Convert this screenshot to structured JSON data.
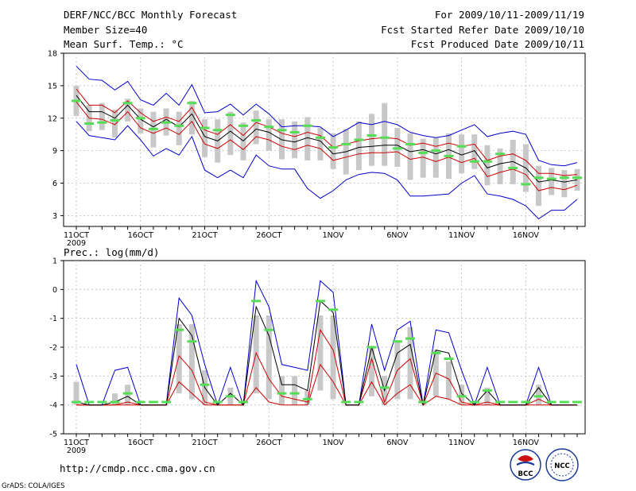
{
  "header": {
    "title": "DERF/NCC/BCC Monthly Forecast",
    "member_size": "Member Size=40",
    "variable": "Mean Surf. Temp.: °C",
    "period": "For 2009/10/11-2009/11/19",
    "started": "Fcst Started Refer Date 2009/10/10",
    "produced": "Fcst Produced Date 2009/10/11"
  },
  "footer": {
    "url": "http://cmdp.ncc.cma.gov.cn",
    "grads": "GrADS: COLA/IGES",
    "logo_left": "BCC",
    "logo_right": "NCC"
  },
  "colors": {
    "ensemble_range": "#0000cc",
    "spread": "#cc0000",
    "mean": "#000000",
    "box": "#c8c8c8",
    "marker": "#55dd55"
  },
  "chart_data": [
    {
      "type": "line",
      "title": "Mean Surf. Temp.: °C",
      "x_dates": [
        "10/11",
        "10/12",
        "10/13",
        "10/14",
        "10/15",
        "10/16",
        "10/17",
        "10/18",
        "10/19",
        "10/20",
        "10/21",
        "10/22",
        "10/23",
        "10/24",
        "10/25",
        "10/26",
        "10/27",
        "10/28",
        "10/29",
        "10/30",
        "10/31",
        "11/01",
        "11/02",
        "11/03",
        "11/04",
        "11/05",
        "11/06",
        "11/07",
        "11/08",
        "11/09",
        "11/10",
        "11/11",
        "11/12",
        "11/13",
        "11/14",
        "11/15",
        "11/16",
        "11/17",
        "11/18",
        "11/19"
      ],
      "xtick_labels": [
        "11OCT\n2009",
        "16OCT",
        "21OCT",
        "26OCT",
        "1NOV",
        "6NOV",
        "11NOV",
        "16NOV"
      ],
      "ylim": [
        2,
        18
      ],
      "yticks": [
        3,
        6,
        9,
        12,
        15,
        18
      ],
      "series": [
        {
          "name": "max",
          "values": [
            16.8,
            15.6,
            15.5,
            14.6,
            15.4,
            13.7,
            13.2,
            14.3,
            13.2,
            15.1,
            12.5,
            12.6,
            13.3,
            12.3,
            13.3,
            12.4,
            11.2,
            11.3,
            11.3,
            11.2,
            10.3,
            10.9,
            11.6,
            11.4,
            11.7,
            11.4,
            10.7,
            10.4,
            10.2,
            10.4,
            10.9,
            11.4,
            10.3,
            10.6,
            10.8,
            10.5,
            8.1,
            7.7,
            7.6,
            7.9
          ]
        },
        {
          "name": "p_upper",
          "values": [
            14.7,
            13.2,
            13.2,
            12.5,
            13.6,
            12.5,
            11.7,
            12.1,
            11.7,
            13.0,
            10.9,
            10.5,
            11.4,
            10.4,
            11.6,
            11.2,
            10.6,
            10.3,
            10.7,
            10.4,
            9.3,
            9.6,
            9.9,
            10.1,
            10.2,
            10.1,
            9.5,
            9.7,
            9.4,
            9.7,
            9.4,
            9.6,
            8.1,
            8.5,
            8.7,
            8.1,
            6.9,
            6.9,
            6.7,
            6.8
          ]
        },
        {
          "name": "mean",
          "values": [
            14.1,
            12.6,
            12.6,
            12.0,
            13.2,
            11.9,
            11.2,
            11.9,
            11.2,
            12.4,
            10.3,
            9.9,
            10.8,
            9.9,
            11.0,
            10.7,
            10.0,
            9.8,
            10.2,
            9.9,
            8.7,
            8.9,
            9.3,
            9.4,
            9.5,
            9.5,
            8.9,
            9.1,
            8.7,
            9.1,
            8.6,
            9.0,
            7.4,
            7.8,
            8.0,
            7.4,
            6.1,
            6.3,
            6.1,
            6.3
          ]
        },
        {
          "name": "p_lower",
          "values": [
            13.5,
            12.0,
            11.9,
            11.4,
            12.6,
            11.1,
            10.6,
            11.1,
            10.5,
            11.7,
            9.6,
            9.2,
            10.0,
            9.1,
            10.3,
            10.0,
            9.4,
            9.1,
            9.5,
            9.2,
            8.1,
            8.4,
            8.7,
            8.8,
            8.8,
            8.9,
            8.2,
            8.4,
            8.0,
            8.4,
            7.9,
            8.3,
            6.6,
            7.0,
            7.3,
            6.8,
            5.3,
            5.6,
            5.4,
            5.8
          ]
        },
        {
          "name": "min",
          "values": [
            11.7,
            10.4,
            10.2,
            10.0,
            11.3,
            10.0,
            8.5,
            9.2,
            8.6,
            10.3,
            7.2,
            6.5,
            7.2,
            6.5,
            8.6,
            7.6,
            7.3,
            7.3,
            5.5,
            4.6,
            5.3,
            6.3,
            6.8,
            7.0,
            6.9,
            6.3,
            4.8,
            4.8,
            4.9,
            5.0,
            6.0,
            6.7,
            5.0,
            4.8,
            4.5,
            3.9,
            2.7,
            3.5,
            3.5,
            4.5
          ]
        },
        {
          "name": "marker",
          "values": [
            13.6,
            11.5,
            11.6,
            11.8,
            13.4,
            12.0,
            11.0,
            11.6,
            11.3,
            13.4,
            11.1,
            10.9,
            12.3,
            11.3,
            11.8,
            11.2,
            10.9,
            10.7,
            11.3,
            10.2,
            9.3,
            9.6,
            10.0,
            10.4,
            10.2,
            9.2,
            9.6,
            8.8,
            9.0,
            8.5,
            9.4,
            8.0,
            8.0,
            8.7,
            7.4,
            5.9,
            6.5,
            6.4,
            6.5,
            6.5
          ]
        },
        {
          "name": "box_top",
          "values": [
            15.0,
            13.2,
            13.4,
            12.8,
            13.8,
            12.9,
            12.6,
            12.9,
            12.6,
            13.6,
            11.9,
            11.9,
            12.6,
            11.6,
            12.7,
            11.9,
            11.9,
            11.7,
            12.1,
            11.1,
            10.6,
            11.0,
            11.7,
            12.4,
            13.4,
            11.1,
            10.6,
            10.1,
            10.2,
            10.6,
            10.5,
            10.5,
            9.5,
            9.2,
            10.0,
            9.6,
            7.6,
            7.4,
            7.2,
            7.3
          ]
        },
        {
          "name": "box_bottom",
          "values": [
            12.2,
            10.8,
            10.9,
            10.2,
            11.7,
            10.6,
            9.3,
            10.4,
            9.5,
            10.5,
            8.4,
            7.9,
            8.6,
            8.1,
            9.6,
            9.0,
            8.2,
            8.3,
            8.1,
            8.1,
            7.3,
            6.8,
            7.2,
            7.6,
            7.6,
            7.5,
            6.3,
            6.5,
            6.5,
            6.4,
            6.9,
            7.3,
            5.8,
            5.9,
            5.9,
            5.2,
            3.9,
            4.9,
            4.7,
            5.3
          ]
        }
      ]
    },
    {
      "type": "line",
      "title": "Prec.: log(mm/d)",
      "x_dates": [
        "10/11",
        "10/12",
        "10/13",
        "10/14",
        "10/15",
        "10/16",
        "10/17",
        "10/18",
        "10/19",
        "10/20",
        "10/21",
        "10/22",
        "10/23",
        "10/24",
        "10/25",
        "10/26",
        "10/27",
        "10/28",
        "10/29",
        "10/30",
        "10/31",
        "11/01",
        "11/02",
        "11/03",
        "11/04",
        "11/05",
        "11/06",
        "11/07",
        "11/08",
        "11/09",
        "11/10",
        "11/11",
        "11/12",
        "11/13",
        "11/14",
        "11/15",
        "11/16",
        "11/17",
        "11/18",
        "11/19"
      ],
      "xtick_labels": [
        "11OCT\n2009",
        "16OCT",
        "21OCT",
        "26OCT",
        "1NOV",
        "6NOV",
        "11NOV",
        "16NOV"
      ],
      "ylim": [
        -5,
        1
      ],
      "yticks": [
        -5,
        -4,
        -3,
        -2,
        -1,
        0,
        1
      ],
      "series": [
        {
          "name": "max",
          "values": [
            -2.6,
            -4,
            -4,
            -2.8,
            -2.7,
            -4,
            -4,
            -4,
            -0.3,
            -0.9,
            -2.6,
            -4,
            -2.7,
            -4,
            0.3,
            -0.6,
            -2.6,
            -2.7,
            -2.8,
            0.3,
            -0.1,
            -4,
            -4,
            -1.2,
            -2.8,
            -1.4,
            -1.1,
            -4,
            -1.4,
            -1.5,
            -2.8,
            -4,
            -2.7,
            -4,
            -4,
            -4,
            -2.7,
            -4,
            -4,
            -4
          ]
        },
        {
          "name": "mean",
          "values": [
            -3.9,
            -4,
            -4,
            -3.9,
            -3.7,
            -4,
            -4,
            -4,
            -1.0,
            -1.6,
            -3.4,
            -4,
            -3.6,
            -4,
            -0.6,
            -1.6,
            -3.3,
            -3.3,
            -3.5,
            -0.4,
            -0.8,
            -4,
            -4,
            -2.0,
            -3.5,
            -2.2,
            -1.9,
            -4,
            -2.1,
            -2.2,
            -3.6,
            -4,
            -3.5,
            -4,
            -4,
            -4,
            -3.4,
            -4,
            -4,
            -4
          ]
        },
        {
          "name": "spread",
          "values": [
            -4,
            -4,
            -4,
            -4,
            -3.9,
            -4,
            -4,
            -4,
            -2.3,
            -2.8,
            -3.9,
            -4,
            -4,
            -4,
            -2.2,
            -3.1,
            -3.7,
            -3.8,
            -3.9,
            -1.4,
            -2.1,
            -4,
            -4,
            -2.4,
            -3.9,
            -2.8,
            -2.4,
            -4,
            -2.9,
            -3.1,
            -3.9,
            -4,
            -3.9,
            -4,
            -4,
            -4,
            -3.8,
            -4,
            -4,
            -4
          ]
        },
        {
          "name": "low",
          "values": [
            -4,
            -4,
            -4,
            -4,
            -4,
            -4,
            -4,
            -4,
            -3.2,
            -3.6,
            -4,
            -4,
            -4,
            -4,
            -3.4,
            -3.9,
            -4,
            -4,
            -4,
            -2.6,
            -3.2,
            -4,
            -4,
            -3.2,
            -4,
            -3.6,
            -3.3,
            -4,
            -3.7,
            -3.8,
            -4,
            -4,
            -4,
            -4,
            -4,
            -4,
            -4,
            -4,
            -4,
            -4
          ]
        },
        {
          "name": "marker",
          "values": [
            -3.9,
            -3.9,
            -3.9,
            -3.9,
            -3.6,
            -3.9,
            -3.9,
            -3.9,
            -1.4,
            -1.8,
            -3.3,
            -3.9,
            -3.7,
            -3.9,
            -0.4,
            -1.4,
            -3.6,
            -3.6,
            -3.8,
            -0.4,
            -0.7,
            -3.9,
            -3.9,
            -2.0,
            -3.4,
            -1.8,
            -1.7,
            -3.9,
            -2.2,
            -2.4,
            -3.7,
            -3.9,
            -3.5,
            -3.9,
            -3.9,
            -3.9,
            -3.7,
            -3.9,
            -3.9,
            -3.9
          ]
        },
        {
          "name": "box_top",
          "values": [
            -3.2,
            -4,
            -4,
            -3.6,
            -3.3,
            -4,
            -4,
            -4,
            -1.2,
            -1.2,
            -2.8,
            -4,
            -3.4,
            -4,
            -0.9,
            -0.9,
            -3.0,
            -3.0,
            -3.5,
            -0.9,
            -0.9,
            -4,
            -4,
            -2.0,
            -3.0,
            -1.8,
            -1.3,
            -4,
            -2.1,
            -2.5,
            -3.3,
            -4,
            -3.4,
            -4,
            -4,
            -4,
            -3.3,
            -4,
            -4,
            -4
          ]
        },
        {
          "name": "box_bottom",
          "values": [
            -4,
            -4,
            -4,
            -4,
            -4,
            -4,
            -4,
            -4,
            -3.6,
            -3.8,
            -4,
            -4,
            -4,
            -4,
            -3.6,
            -3.8,
            -4,
            -4,
            -4,
            -3.5,
            -3.8,
            -4,
            -4,
            -3.7,
            -4,
            -3.8,
            -3.8,
            -4,
            -3.7,
            -3.8,
            -4,
            -4,
            -4,
            -4,
            -4,
            -4,
            -4,
            -4,
            -4,
            -4
          ]
        }
      ]
    }
  ]
}
